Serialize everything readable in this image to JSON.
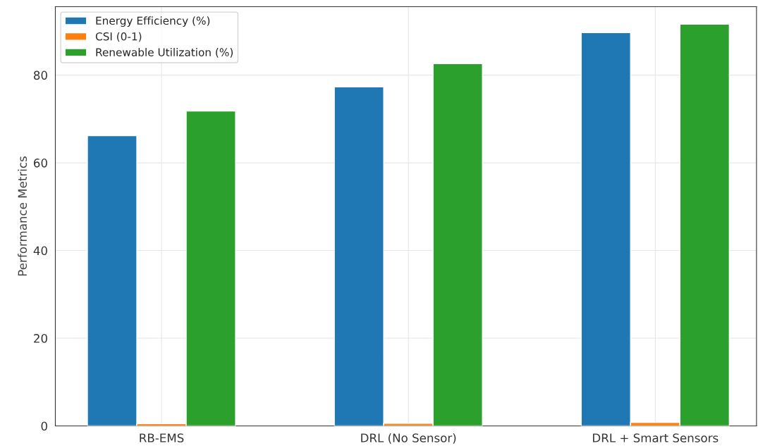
{
  "chart_data": {
    "type": "bar",
    "ylabel": "Performance Metrics",
    "categories": [
      "RB-EMS",
      "DRL (No Sensor)",
      "DRL + Smart Sensors"
    ],
    "series": [
      {
        "name": "Energy Efficiency (%)",
        "color": "#1f77b4",
        "values": [
          66.2,
          77.3,
          89.7
        ]
      },
      {
        "name": "CSI (0-1)",
        "color": "#ff7f0e",
        "values": [
          0.5,
          0.6,
          0.8
        ]
      },
      {
        "name": "Renewable Utilization (%)",
        "color": "#2ca02c",
        "values": [
          71.8,
          82.6,
          91.6
        ]
      }
    ],
    "ylim": [
      0,
      95.6
    ],
    "yticks": [
      0,
      20,
      40,
      60,
      80
    ],
    "grid": true,
    "legend": "top left"
  }
}
